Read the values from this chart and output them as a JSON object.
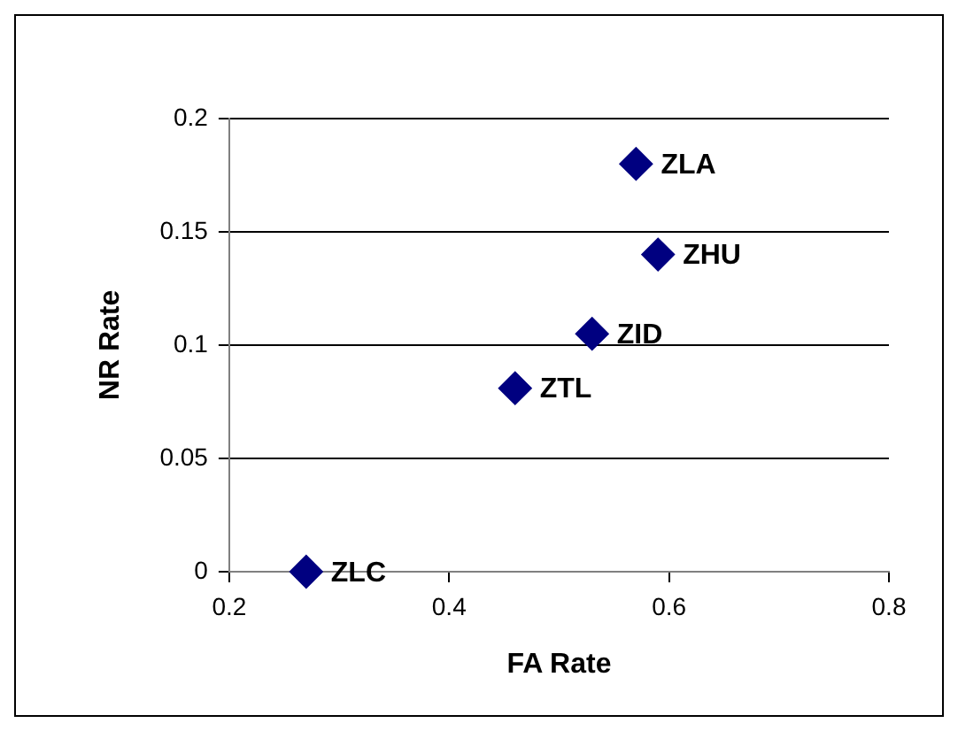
{
  "chart_data": {
    "type": "scatter",
    "xlabel": "FA Rate",
    "ylabel": "NR Rate",
    "x": [
      0.57,
      0.59,
      0.53,
      0.46,
      0.27
    ],
    "series": [
      {
        "color": "#000080",
        "values": [
          0.18,
          0.14,
          0.105,
          0.081,
          0
        ]
      }
    ],
    "annotations": [
      {
        "text": "ZLA",
        "x": 0.57,
        "y": 0.18
      },
      {
        "text": "ZHU",
        "x": 0.59,
        "y": 0.14
      },
      {
        "text": "ZID",
        "x": 0.53,
        "y": 0.105
      },
      {
        "text": "ZTL",
        "x": 0.46,
        "y": 0.081
      },
      {
        "text": "ZLC",
        "x": 0.27,
        "y": 0
      }
    ],
    "xlim": [
      0.2,
      0.8
    ],
    "xticks": [
      0.2,
      0.4,
      0.6,
      0.8
    ],
    "ylim": [
      0,
      0.2
    ],
    "yticks": [
      0,
      0.05,
      0.1,
      0.15,
      0.2
    ],
    "grid": "y",
    "legend": false,
    "marker": "diamond"
  }
}
